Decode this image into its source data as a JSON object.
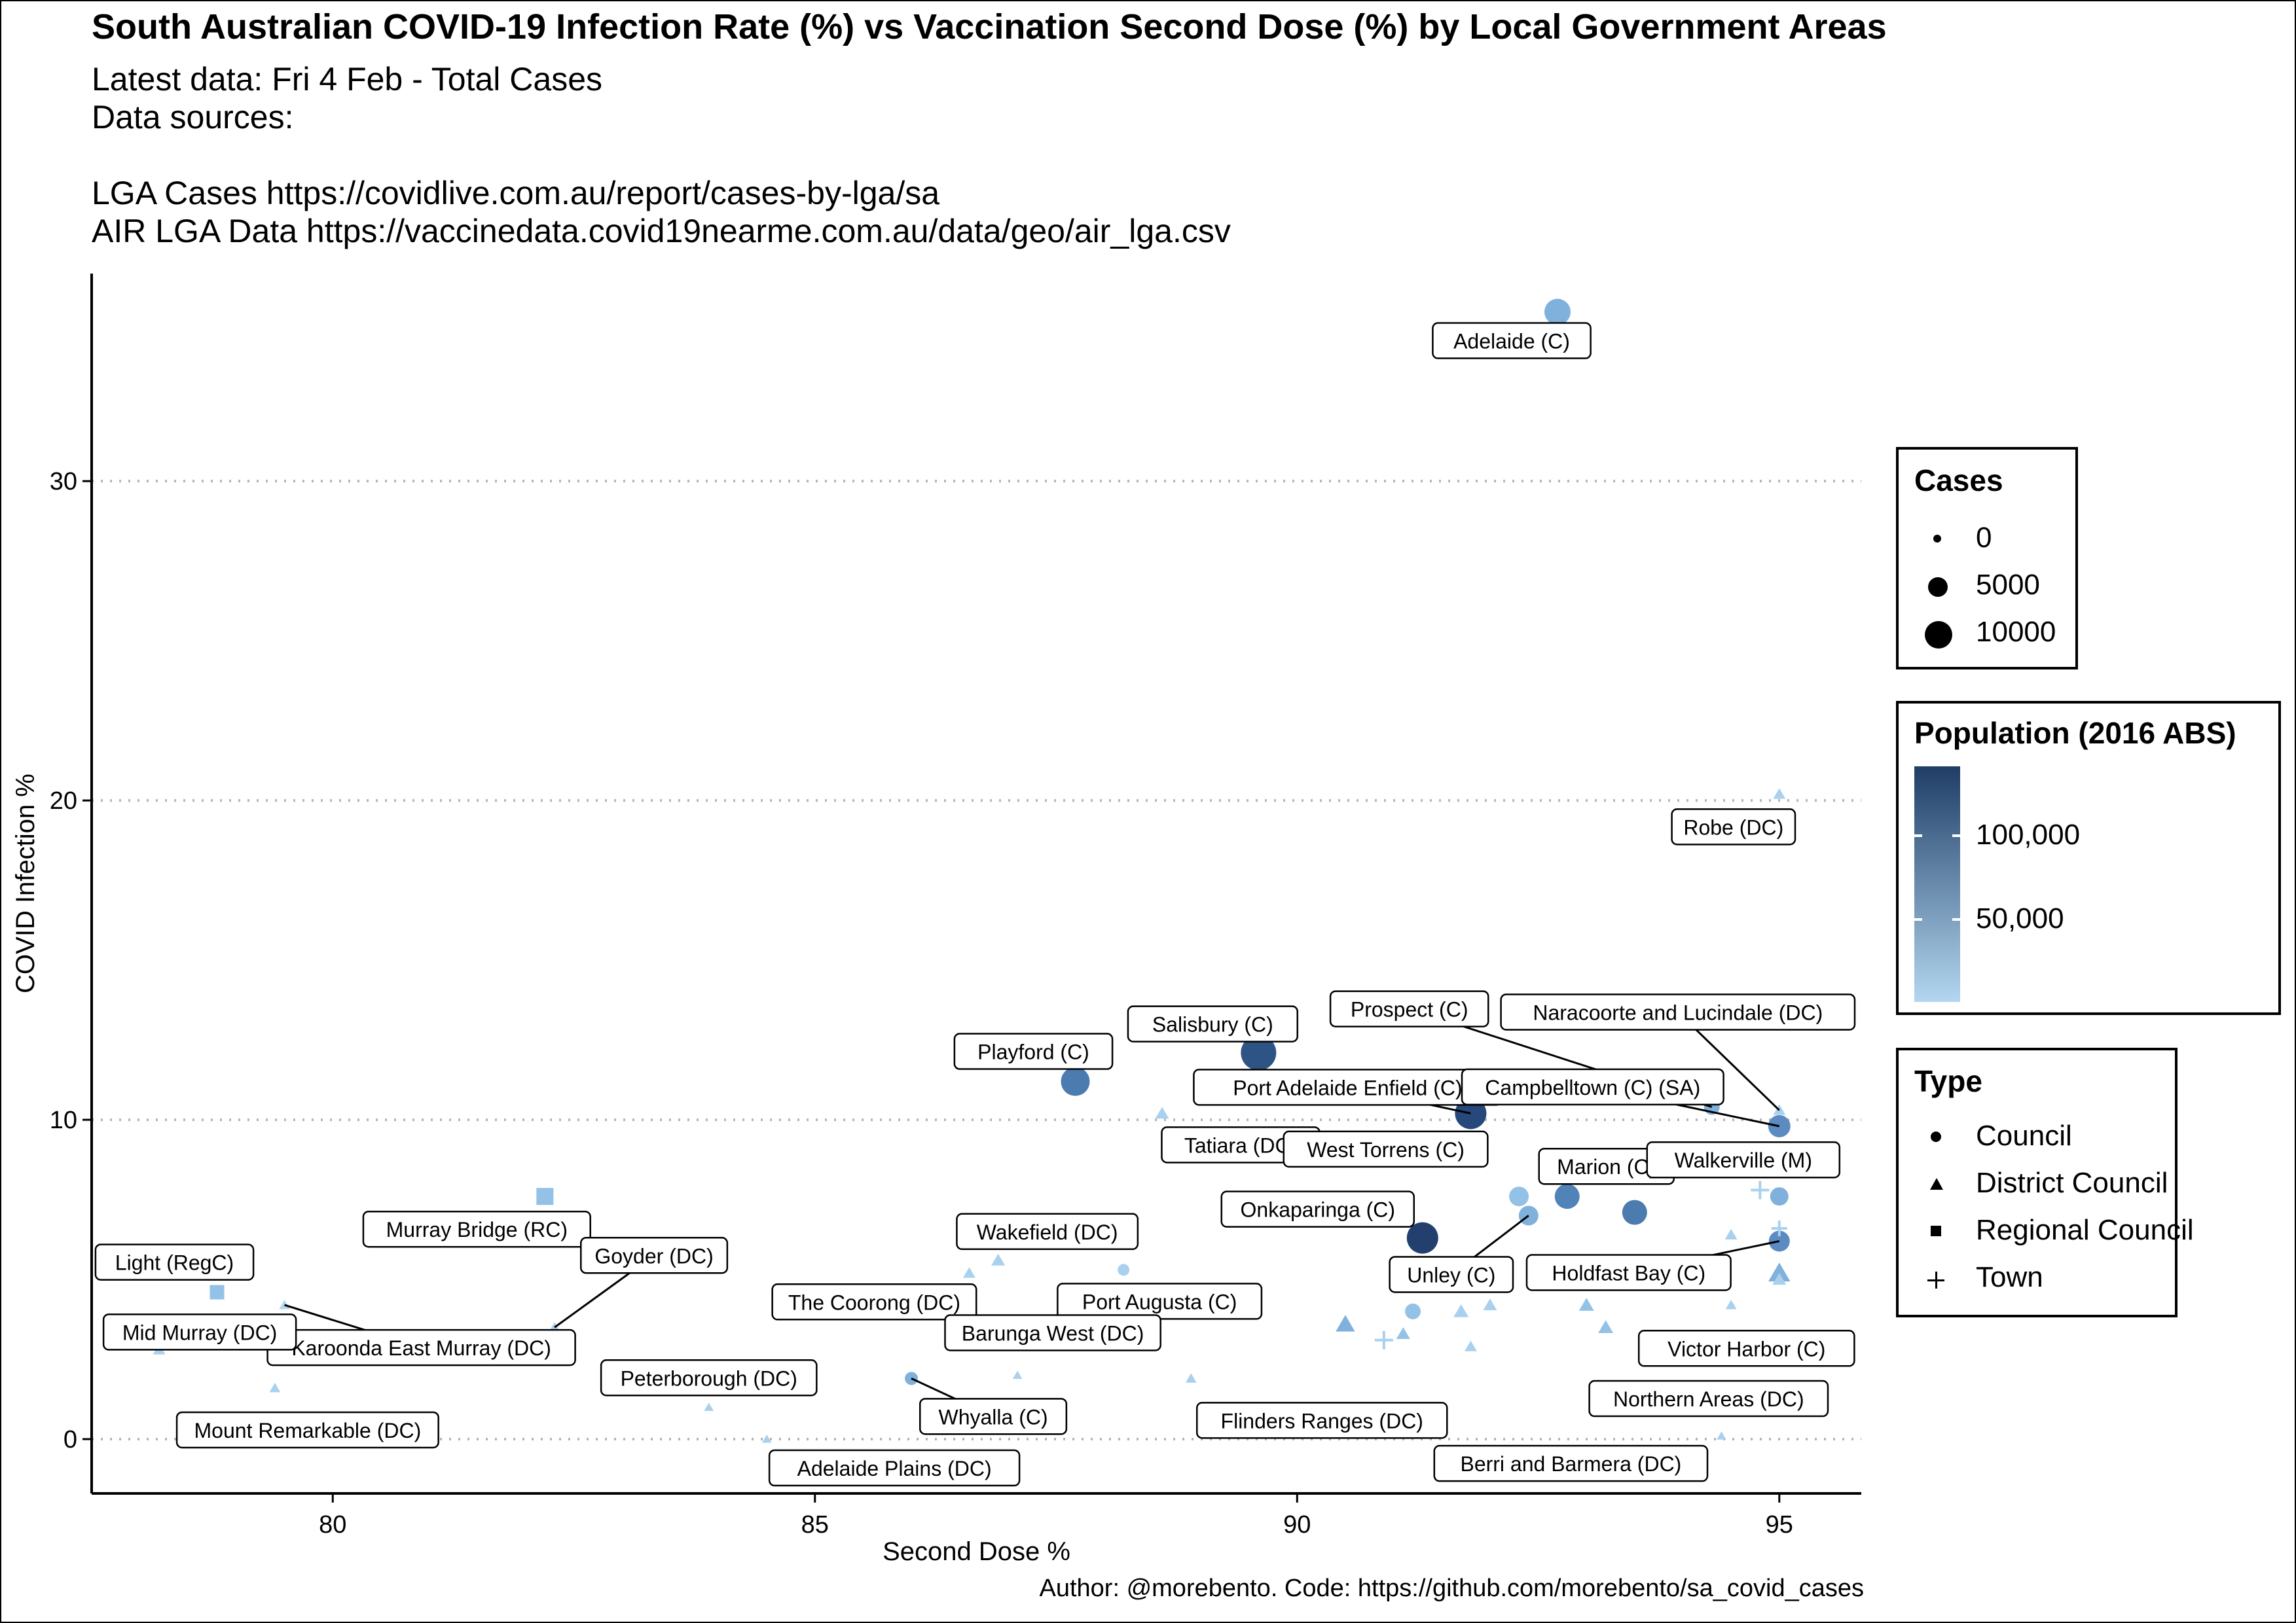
{
  "title": "South Australian COVID-19 Infection Rate (%) vs Vaccination Second Dose (%) by Local Government Areas",
  "subtitle_lines": [
    "Latest data: Fri 4 Feb - Total Cases",
    "Data sources:",
    "",
    "LGA Cases https://covidlive.com.au/report/cases-by-lga/sa",
    "AIR LGA Data https://vaccinedata.covid19nearme.com.au/data/geo/air_lga.csv"
  ],
  "caption": "Author: @morebento. Code: https://github.com/morebento/sa_covid_cases",
  "legends": {
    "cases": {
      "title": "Cases",
      "labels": [
        "0",
        "5000",
        "10000"
      ]
    },
    "population": {
      "title": "Population (2016 ABS)",
      "labels": [
        "100,000",
        "50,000"
      ],
      "color_low": "#b3d7f0",
      "color_high": "#1f3d66"
    },
    "type": {
      "title": "Type",
      "labels": [
        "Council",
        "District Council",
        "Regional Council",
        "Town"
      ]
    }
  },
  "chart_data": {
    "type": "scatter",
    "xlabel": "Second Dose %",
    "ylabel": "COVID Infection %",
    "xlim": [
      77.5,
      95.85
    ],
    "ylim": [
      -1.7,
      36.5
    ],
    "x_ticks": [
      "80",
      "85",
      "90",
      "95"
    ],
    "y_ticks": [
      "0",
      "10",
      "20",
      "30"
    ],
    "grid": "horizontal dotted",
    "legend_position": "right",
    "points": [
      {
        "x": 92.7,
        "y": 35.3,
        "shape": "circle",
        "color": "#7fb1dc",
        "size": 20,
        "label": "Adelaide (C)"
      },
      {
        "x": 95.0,
        "y": 20.2,
        "shape": "triangle",
        "color": "#a9d1ee",
        "size": 9,
        "label": "Robe (DC)"
      },
      {
        "x": 89.6,
        "y": 12.1,
        "shape": "circle",
        "color": "#2d5484",
        "size": 27,
        "label": "Salisbury (C)"
      },
      {
        "x": 87.7,
        "y": 11.2,
        "shape": "circle",
        "color": "#4c7bb0",
        "size": 22,
        "label": "Playford (C)"
      },
      {
        "x": 91.8,
        "y": 10.2,
        "shape": "circle",
        "color": "#27487a",
        "size": 24,
        "label": "Port Adelaide Enfield (C)"
      },
      {
        "x": 94.3,
        "y": 10.4,
        "shape": "circle",
        "color": "#7fb1dc",
        "size": 12,
        "label": "Prospect (C)"
      },
      {
        "x": 95.0,
        "y": 9.8,
        "shape": "circle",
        "color": "#5b8bc1",
        "size": 17,
        "label": "Campbelltown (C) (SA)"
      },
      {
        "x": 95.0,
        "y": 10.3,
        "shape": "triangle",
        "color": "#a9d1ee",
        "size": 9,
        "label": "Naracoorte and Lucindale (DC)"
      },
      {
        "x": 88.6,
        "y": 10.2,
        "shape": "triangle",
        "color": "#a9d1ee",
        "size": 10,
        "label": "Tatiara (DC)"
      },
      {
        "x": 89.9,
        "y": 9.0,
        "shape": "circle",
        "color": "#5b8bc1",
        "size": 17,
        "label": "West Torrens (C)"
      },
      {
        "x": 92.8,
        "y": 7.6,
        "shape": "circle",
        "color": "#5283b8",
        "size": 19,
        "label": "Marion (C)"
      },
      {
        "x": 95.0,
        "y": 7.6,
        "shape": "circle",
        "color": "#7fb1dc",
        "size": 14,
        "label": "Walkerville (M)"
      },
      {
        "x": 82.2,
        "y": 7.6,
        "shape": "square",
        "color": "#93c2e6",
        "size": 13,
        "label": "Murray Bridge (RC)"
      },
      {
        "x": 91.3,
        "y": 6.3,
        "shape": "circle",
        "color": "#223f6e",
        "size": 24,
        "label": "Onkaparinga (C)"
      },
      {
        "x": 92.4,
        "y": 7.0,
        "shape": "circle",
        "color": "#7fb1dc",
        "size": 15,
        "label": "Unley (C)"
      },
      {
        "x": 95.0,
        "y": 6.2,
        "shape": "circle",
        "color": "#5b8bc1",
        "size": 16,
        "label": "Holdfast Bay (C)"
      },
      {
        "x": 95.0,
        "y": 5.2,
        "shape": "triangle",
        "color": "#7fb1dc",
        "size": 16,
        "label": "Victor Harbor (C)"
      },
      {
        "x": 86.9,
        "y": 5.6,
        "shape": "triangle",
        "color": "#a9d1ee",
        "size": 10,
        "label": "Wakefield (DC)"
      },
      {
        "x": 86.6,
        "y": 5.2,
        "shape": "triangle",
        "color": "#a9d1ee",
        "size": 9,
        "label": "The Coorong (DC)"
      },
      {
        "x": 88.2,
        "y": 5.3,
        "shape": "circle",
        "color": "#a9d1ee",
        "size": 9,
        "label": "Port Augusta (C)"
      },
      {
        "x": 78.8,
        "y": 4.6,
        "shape": "square",
        "color": "#93c2e6",
        "size": 11,
        "label": "Light (RegC)"
      },
      {
        "x": 79.5,
        "y": 4.2,
        "shape": "triangle",
        "color": "#b3d7f0",
        "size": 8,
        "label": "Karoonda East Murray (DC)"
      },
      {
        "x": 78.2,
        "y": 2.8,
        "shape": "triangle",
        "color": "#a9d1ee",
        "size": 9,
        "label": "Mid Murray (DC)"
      },
      {
        "x": 82.3,
        "y": 3.5,
        "shape": "triangle",
        "color": "#a9d1ee",
        "size": 8,
        "label": "Goyder (DC)"
      },
      {
        "x": 79.4,
        "y": 1.6,
        "shape": "triangle",
        "color": "#a9d1ee",
        "size": 8,
        "label": "Mount Remarkable (DC)"
      },
      {
        "x": 83.9,
        "y": 1.0,
        "shape": "triangle",
        "color": "#a9d1ee",
        "size": 7,
        "label": "Peterborough (DC)"
      },
      {
        "x": 86.0,
        "y": 1.9,
        "shape": "circle",
        "color": "#7fb1dc",
        "size": 10,
        "label": "Whyalla (C)"
      },
      {
        "x": 87.1,
        "y": 2.0,
        "shape": "triangle",
        "color": "#a9d1ee",
        "size": 7,
        "label": "Barunga West (DC)"
      },
      {
        "x": 84.5,
        "y": 0.0,
        "shape": "triangle",
        "color": "#a9d1ee",
        "size": 7,
        "label": "Adelaide Plains (DC)"
      },
      {
        "x": 88.9,
        "y": 1.9,
        "shape": "triangle",
        "color": "#a9d1ee",
        "size": 8,
        "label": "Flinders Ranges (DC)"
      },
      {
        "x": 94.4,
        "y": 0.1,
        "shape": "triangle",
        "color": "#a9d1ee",
        "size": 7,
        "label": "Berri and Barmera (DC)"
      },
      {
        "x": 95.0,
        "y": 2.5,
        "shape": "triangle",
        "color": "#a9d1ee",
        "size": 8,
        "label": "Northern Areas (DC)"
      },
      {
        "x": 90.5,
        "y": 3.6,
        "shape": "triangle",
        "color": "#7fb1dc",
        "size": 14,
        "label": ""
      },
      {
        "x": 90.9,
        "y": 3.1,
        "shape": "cross",
        "color": "#a9d1ee",
        "size": 14,
        "label": ""
      },
      {
        "x": 91.1,
        "y": 3.3,
        "shape": "triangle",
        "color": "#93c2e6",
        "size": 10,
        "label": ""
      },
      {
        "x": 91.2,
        "y": 4.0,
        "shape": "circle",
        "color": "#93c2e6",
        "size": 12,
        "label": ""
      },
      {
        "x": 91.7,
        "y": 4.0,
        "shape": "triangle",
        "color": "#a9d1ee",
        "size": 11,
        "label": ""
      },
      {
        "x": 91.8,
        "y": 2.9,
        "shape": "triangle",
        "color": "#a9d1ee",
        "size": 9,
        "label": ""
      },
      {
        "x": 92.0,
        "y": 4.2,
        "shape": "triangle",
        "color": "#a9d1ee",
        "size": 10,
        "label": ""
      },
      {
        "x": 92.3,
        "y": 7.6,
        "shape": "circle",
        "color": "#93c2e6",
        "size": 15,
        "label": ""
      },
      {
        "x": 93.0,
        "y": 4.2,
        "shape": "triangle",
        "color": "#93c2e6",
        "size": 11,
        "label": ""
      },
      {
        "x": 93.2,
        "y": 3.5,
        "shape": "triangle",
        "color": "#93c2e6",
        "size": 11,
        "label": ""
      },
      {
        "x": 93.5,
        "y": 7.1,
        "shape": "circle",
        "color": "#4c7bb0",
        "size": 19,
        "label": ""
      },
      {
        "x": 94.2,
        "y": 2.8,
        "shape": "triangle",
        "color": "#a9d1ee",
        "size": 10,
        "label": ""
      },
      {
        "x": 94.5,
        "y": 6.4,
        "shape": "triangle",
        "color": "#a9d1ee",
        "size": 9,
        "label": ""
      },
      {
        "x": 94.5,
        "y": 4.2,
        "shape": "triangle",
        "color": "#a9d1ee",
        "size": 8,
        "label": ""
      },
      {
        "x": 94.8,
        "y": 7.8,
        "shape": "cross",
        "color": "#a9d1ee",
        "size": 14,
        "label": ""
      },
      {
        "x": 95.0,
        "y": 6.6,
        "shape": "cross",
        "color": "#a9d1ee",
        "size": 12,
        "label": ""
      },
      {
        "x": 95.0,
        "y": 5.0,
        "shape": "triangle",
        "color": "#a9d1ee",
        "size": 10,
        "label": ""
      },
      {
        "x": 95.0,
        "y": 2.8,
        "shape": "circle",
        "color": "#a9d1ee",
        "size": 9,
        "label": ""
      }
    ]
  }
}
